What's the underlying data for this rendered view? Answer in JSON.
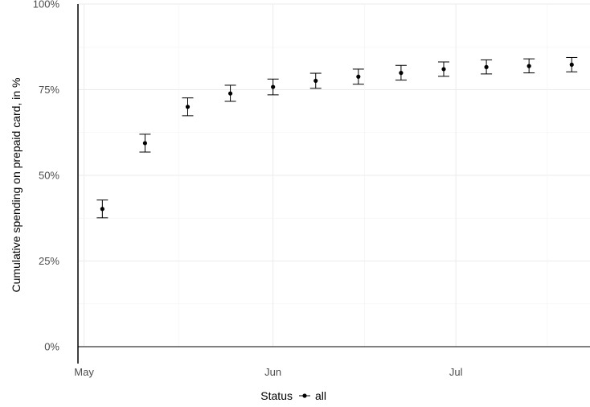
{
  "chart_data": {
    "type": "scatter",
    "ylabel": "Cumulative spending on prepaid card, in %",
    "xlabel": "",
    "ylim": [
      0,
      100
    ],
    "xlim": [
      "2020-04-30",
      "2020-07-23"
    ],
    "grid": true,
    "y_ticks": [
      0,
      25,
      50,
      75,
      100
    ],
    "y_tick_labels": [
      "0%",
      "25%",
      "50%",
      "75%",
      "100%"
    ],
    "x_ticks": [
      "2020-05-01",
      "2020-06-01",
      "2020-07-01"
    ],
    "x_tick_labels": [
      "May",
      "Jun",
      "Jul"
    ],
    "legend": {
      "title": "Status",
      "entries": [
        "all"
      ],
      "position": "bottom"
    },
    "series": [
      {
        "name": "all",
        "color": "#000000",
        "x": [
          "2020-05-04",
          "2020-05-11",
          "2020-05-18",
          "2020-05-25",
          "2020-06-01",
          "2020-06-08",
          "2020-06-15",
          "2020-06-22",
          "2020-06-29",
          "2020-07-06",
          "2020-07-13",
          "2020-07-20"
        ],
        "y": [
          40.2,
          59.4,
          70.0,
          73.9,
          75.8,
          77.6,
          78.8,
          79.9,
          81.0,
          81.6,
          81.9,
          82.3
        ],
        "ymin": [
          37.6,
          56.8,
          67.4,
          71.6,
          73.5,
          75.4,
          76.6,
          77.8,
          78.9,
          79.6,
          79.9,
          80.2
        ],
        "ymax": [
          42.8,
          62.0,
          72.6,
          76.3,
          78.1,
          79.8,
          81.0,
          82.1,
          83.1,
          83.7,
          84.0,
          84.4
        ]
      }
    ]
  }
}
